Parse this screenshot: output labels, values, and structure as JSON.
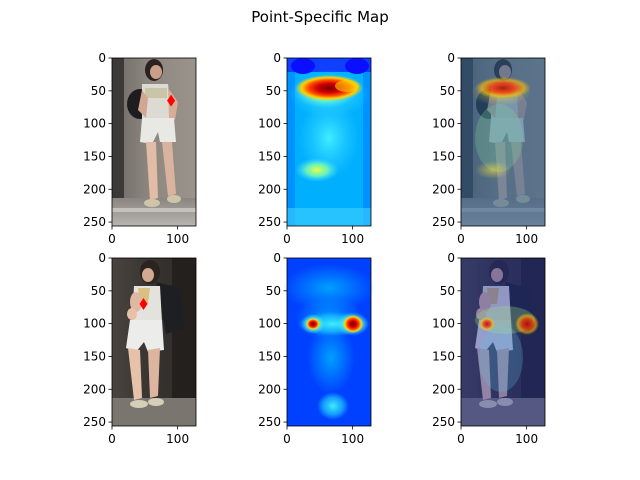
{
  "figure": {
    "title": "Point-Specific Map"
  },
  "colors": {
    "marker": "#ff0000",
    "hot": "#b40000",
    "jet_low": "#0010ff"
  },
  "chart_data": [
    {
      "type": "heatmap",
      "row": 0,
      "col": 0,
      "kind": "photo",
      "xlim": [
        0,
        128
      ],
      "ylim": [
        256,
        0
      ],
      "xticks": [
        0,
        100
      ],
      "yticks": [
        0,
        50,
        100,
        150,
        200,
        250
      ],
      "marker": {
        "x": 90,
        "y": 65
      }
    },
    {
      "type": "heatmap",
      "row": 0,
      "col": 1,
      "kind": "heatmap",
      "xlim": [
        0,
        128
      ],
      "ylim": [
        256,
        0
      ],
      "xticks": [
        0,
        100
      ],
      "yticks": [
        0,
        50,
        100,
        150,
        200,
        250
      ]
    },
    {
      "type": "heatmap",
      "row": 0,
      "col": 2,
      "kind": "overlay",
      "xlim": [
        0,
        128
      ],
      "ylim": [
        256,
        0
      ],
      "xticks": [
        0,
        100
      ],
      "yticks": [
        0,
        50,
        100,
        150,
        200,
        250
      ]
    },
    {
      "type": "heatmap",
      "row": 1,
      "col": 0,
      "kind": "photo",
      "xlim": [
        0,
        128
      ],
      "ylim": [
        256,
        0
      ],
      "xticks": [
        0,
        100
      ],
      "yticks": [
        0,
        50,
        100,
        150,
        200,
        250
      ],
      "marker": {
        "x": 48,
        "y": 70
      }
    },
    {
      "type": "heatmap",
      "row": 1,
      "col": 1,
      "kind": "heatmap",
      "xlim": [
        0,
        128
      ],
      "ylim": [
        256,
        0
      ],
      "xticks": [
        0,
        100
      ],
      "yticks": [
        0,
        50,
        100,
        150,
        200,
        250
      ]
    },
    {
      "type": "heatmap",
      "row": 1,
      "col": 2,
      "kind": "overlay",
      "xlim": [
        0,
        128
      ],
      "ylim": [
        256,
        0
      ],
      "xticks": [
        0,
        100
      ],
      "yticks": [
        0,
        50,
        100,
        150,
        200,
        250
      ]
    }
  ]
}
